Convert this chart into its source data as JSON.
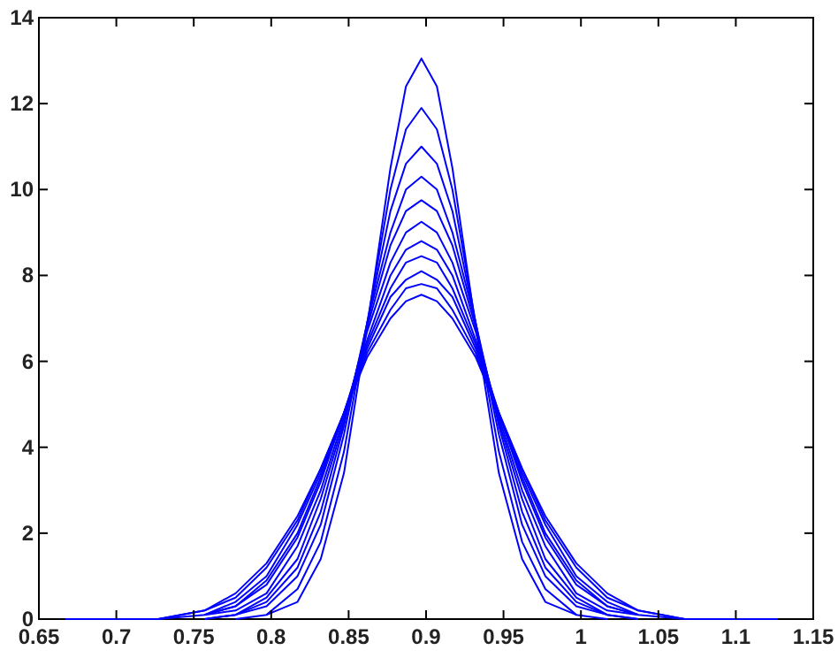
{
  "chart_data": {
    "type": "line",
    "x": [
      0.667,
      0.727,
      0.757,
      0.777,
      0.797,
      0.817,
      0.832,
      0.847,
      0.862,
      0.877,
      0.887,
      0.897,
      0.907,
      0.917,
      0.932,
      0.947,
      0.962,
      0.977,
      0.997,
      1.017,
      1.037,
      1.067,
      1.127
    ],
    "series": [
      {
        "color": "#0000ff",
        "values": [
          null,
          null,
          null,
          null,
          0.1,
          0.4,
          1.4,
          3.4,
          6.8,
          10.5,
          12.4,
          13.05,
          12.4,
          10.5,
          6.8,
          3.4,
          1.4,
          0.4,
          0.1,
          null,
          null,
          null,
          null
        ]
      },
      {
        "color": "#0000ff",
        "values": [
          null,
          null,
          null,
          0,
          0.1,
          0.7,
          1.8,
          3.9,
          6.9,
          10.0,
          11.4,
          11.9,
          11.4,
          10.0,
          6.9,
          3.9,
          1.8,
          0.7,
          0.1,
          0,
          null,
          null,
          null
        ]
      },
      {
        "color": "#0000ff",
        "values": [
          null,
          null,
          null,
          0.1,
          0.3,
          1.0,
          2.2,
          4.3,
          6.9,
          9.5,
          10.6,
          11.0,
          10.6,
          9.5,
          6.9,
          4.3,
          2.2,
          1.0,
          0.3,
          0.1,
          null,
          null,
          null
        ]
      },
      {
        "color": "#0000ff",
        "values": [
          null,
          null,
          0,
          0.1,
          0.4,
          1.2,
          2.5,
          4.5,
          6.9,
          9.0,
          10.0,
          10.3,
          10.0,
          9.0,
          6.9,
          4.5,
          2.5,
          1.2,
          0.4,
          0.1,
          0,
          null,
          null
        ]
      },
      {
        "color": "#0000ff",
        "values": [
          null,
          null,
          0,
          0.1,
          0.5,
          1.4,
          2.8,
          4.6,
          6.8,
          8.7,
          9.5,
          9.75,
          9.5,
          8.7,
          6.8,
          4.6,
          2.8,
          1.4,
          0.5,
          0.1,
          0,
          null,
          null
        ]
      },
      {
        "color": "#0000ff",
        "values": [
          null,
          null,
          0.1,
          0.2,
          0.6,
          1.7,
          3.0,
          4.7,
          6.7,
          8.3,
          9.0,
          9.25,
          9.0,
          8.3,
          6.7,
          4.7,
          3.0,
          1.7,
          0.6,
          0.2,
          0.1,
          null,
          null
        ]
      },
      {
        "color": "#0000ff",
        "values": [
          null,
          null,
          0.1,
          0.3,
          0.8,
          1.9,
          3.2,
          4.8,
          6.5,
          8.0,
          8.6,
          8.8,
          8.6,
          8.0,
          6.5,
          4.8,
          3.2,
          1.9,
          0.8,
          0.3,
          0.1,
          null,
          null
        ]
      },
      {
        "color": "#0000ff",
        "values": [
          null,
          null,
          0.1,
          0.3,
          0.9,
          2.0,
          3.3,
          4.8,
          6.4,
          7.7,
          8.3,
          8.45,
          8.3,
          7.7,
          6.4,
          4.8,
          3.3,
          2.0,
          0.9,
          0.3,
          0.1,
          null,
          null
        ]
      },
      {
        "color": "#0000ff",
        "values": [
          null,
          0,
          0.1,
          0.4,
          1.0,
          2.2,
          3.4,
          4.8,
          6.3,
          7.5,
          7.9,
          8.1,
          7.9,
          7.5,
          6.3,
          4.8,
          3.4,
          2.2,
          1.0,
          0.4,
          0.1,
          0,
          null
        ]
      },
      {
        "color": "#0000ff",
        "values": [
          null,
          0,
          0.2,
          0.5,
          1.2,
          2.3,
          3.5,
          4.8,
          6.2,
          7.2,
          7.7,
          7.8,
          7.7,
          7.2,
          6.2,
          4.8,
          3.5,
          2.3,
          1.2,
          0.5,
          0.2,
          0,
          null
        ]
      },
      {
        "color": "#0000ff",
        "values": [
          0,
          0,
          0.2,
          0.6,
          1.3,
          2.4,
          3.5,
          4.8,
          6.1,
          7.0,
          7.4,
          7.55,
          7.4,
          7.0,
          6.1,
          4.8,
          3.5,
          2.4,
          1.3,
          0.6,
          0.2,
          0,
          0
        ]
      }
    ],
    "xlim": [
      0.65,
      1.15
    ],
    "xticks": [
      0.65,
      0.7,
      0.75,
      0.8,
      0.85,
      0.9,
      0.95,
      1,
      1.05,
      1.1,
      1.15
    ],
    "ylim": [
      0,
      14
    ],
    "yticks": [
      0,
      2,
      4,
      6,
      8,
      10,
      12,
      14
    ],
    "grid": false,
    "marker": "none",
    "line_style": "solid"
  }
}
